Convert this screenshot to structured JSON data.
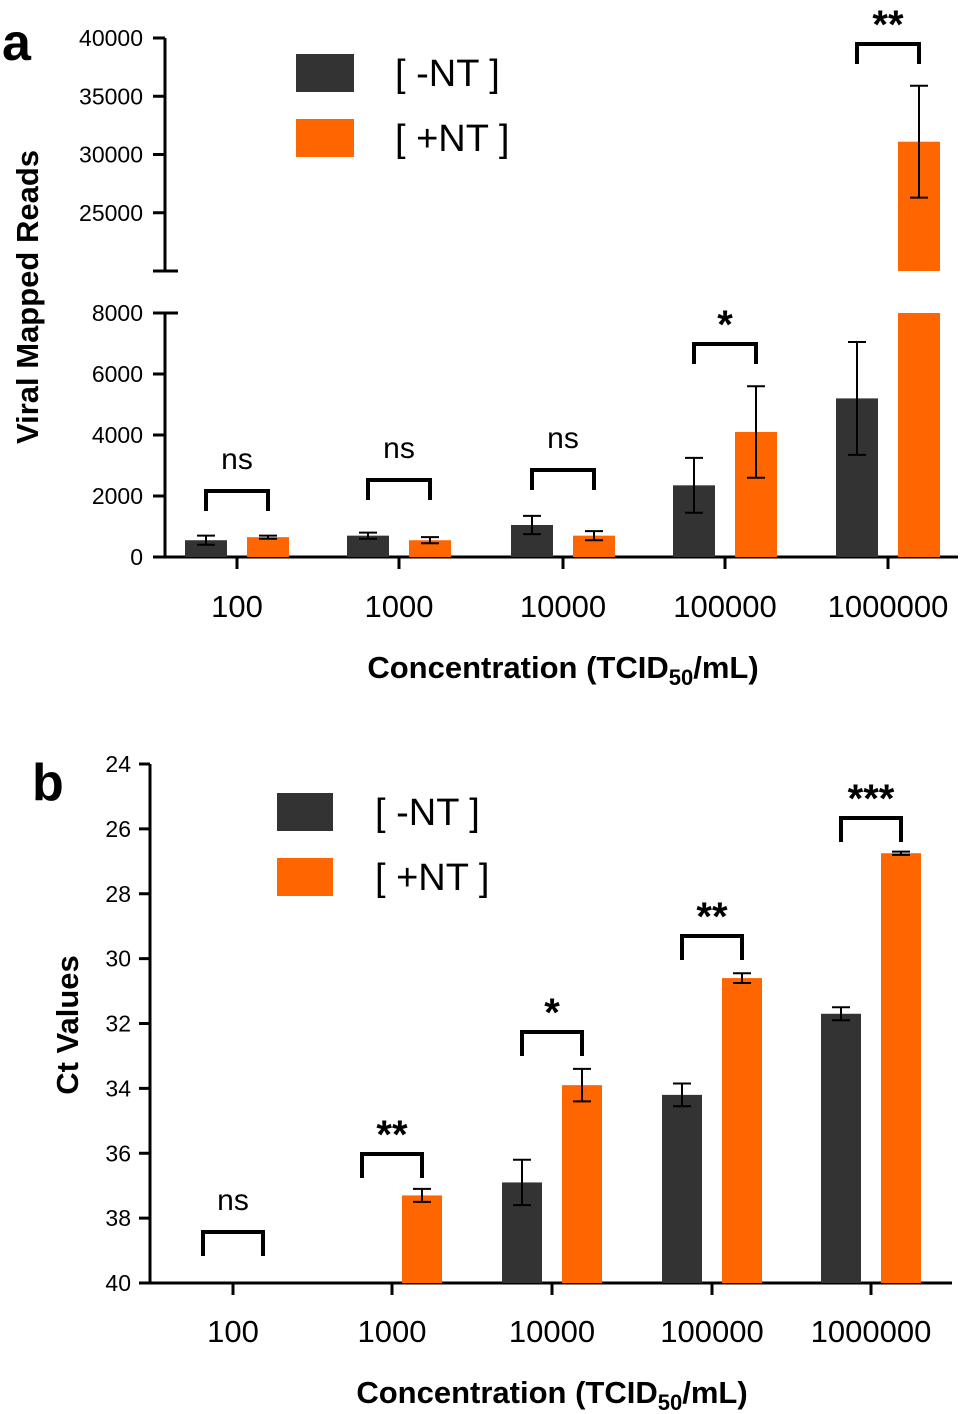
{
  "chart_data": [
    {
      "panel": "a",
      "type": "bar",
      "xlabel_main": "Concentration (TCID",
      "xlabel_sub": "50",
      "xlabel_tail": "/mL)",
      "ylabel": "Viral Mapped Reads",
      "categories": [
        "100",
        "1000",
        "10000",
        "100000",
        "1000000"
      ],
      "series": [
        {
          "name": "[ -NT ]",
          "color": "#333333",
          "values": [
            550,
            700,
            1050,
            2350,
            5200
          ],
          "errors": [
            150,
            100,
            300,
            900,
            1850
          ]
        },
        {
          "name": "[ +NT ]",
          "color": "#ff6600",
          "values": [
            650,
            550,
            700,
            4100,
            31100
          ],
          "errors": [
            50,
            100,
            150,
            1500,
            4800
          ]
        }
      ],
      "y_lower_ticks": [
        0,
        2000,
        4000,
        6000,
        8000
      ],
      "y_upper_ticks": [
        25000,
        30000,
        35000,
        40000
      ],
      "y_lower_range": [
        0,
        8000
      ],
      "y_upper_range": [
        20000,
        40000
      ],
      "significance": [
        "ns",
        "ns",
        "ns",
        "*",
        "**"
      ]
    },
    {
      "panel": "b",
      "type": "bar",
      "xlabel_main": "Concentration (TCID",
      "xlabel_sub": "50",
      "xlabel_tail": "/mL)",
      "ylabel": "Ct Values",
      "categories": [
        "100",
        "1000",
        "10000",
        "100000",
        "1000000"
      ],
      "series": [
        {
          "name": "[ -NT ]",
          "color": "#333333",
          "values": [
            null,
            null,
            36.9,
            34.2,
            31.7
          ],
          "errors": [
            0,
            0,
            0.7,
            0.35,
            0.2
          ]
        },
        {
          "name": "[ +NT ]",
          "color": "#ff6600",
          "values": [
            null,
            37.3,
            33.9,
            30.6,
            26.75
          ],
          "errors": [
            0,
            0.2,
            0.5,
            0.15,
            0.05
          ]
        }
      ],
      "y_ticks": [
        24,
        26,
        28,
        30,
        32,
        34,
        36,
        38,
        40
      ],
      "y_range": [
        24,
        40
      ],
      "y_inverted": true,
      "baseline": 40,
      "significance": [
        "ns",
        "**",
        "*",
        "**",
        "***"
      ]
    }
  ]
}
